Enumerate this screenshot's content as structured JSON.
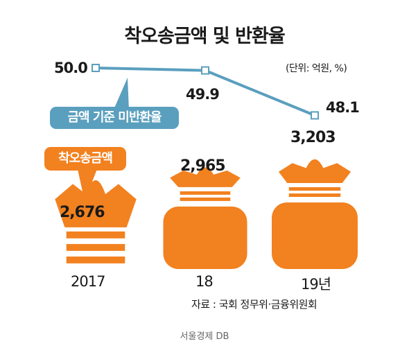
{
  "chart_data": {
    "type": "bar+line",
    "title": "착오송금액 및 반환율",
    "unit_note": "(단위: 억원, %)",
    "categories": [
      "2017",
      "18",
      "19년"
    ],
    "bar_series": {
      "name": "착오송금액",
      "values": [
        2676,
        2965,
        3203
      ],
      "labels": [
        "2,676",
        "2,965",
        "3,203"
      ],
      "color": "#f2811f"
    },
    "line_series": {
      "name": "금액 기준 미반환율",
      "values": [
        50.0,
        49.9,
        48.1
      ],
      "labels": [
        "50.0",
        "49.9",
        "48.1"
      ],
      "color": "#5a9fbe"
    },
    "source": "자료 : 국회 정무위·금융위원회"
  },
  "credit": "서울경제 DB",
  "colors": {
    "orange": "#f2811f",
    "blue": "#5a9fbe",
    "text": "#1a1a1a"
  }
}
